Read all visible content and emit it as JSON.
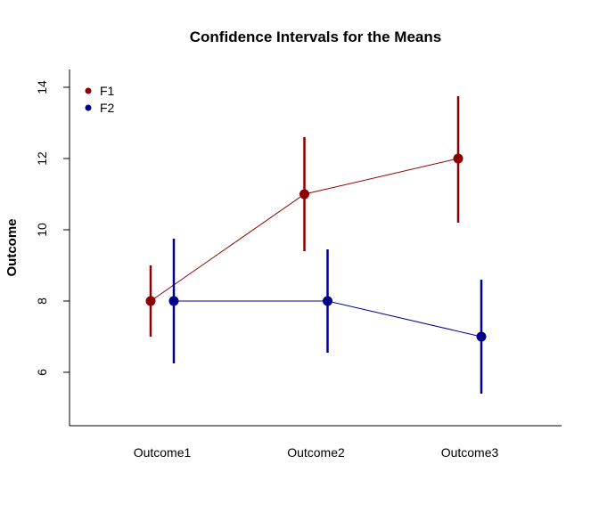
{
  "chart_data": {
    "type": "line",
    "title": "Confidence Intervals for the Means",
    "xlabel": "",
    "ylabel": "Outcome",
    "categories": [
      "Outcome1",
      "Outcome2",
      "Outcome3"
    ],
    "y_ticks": [
      "6",
      "8",
      "10",
      "12",
      "14"
    ],
    "ylim": [
      4.5,
      14.5
    ],
    "grid": false,
    "legend_position": "top-left",
    "series": [
      {
        "name": "F1",
        "color": "#8b0000",
        "values": [
          8,
          11,
          12
        ],
        "lower": [
          7.0,
          9.4,
          10.2
        ],
        "upper": [
          9.0,
          12.6,
          13.75
        ]
      },
      {
        "name": "F2",
        "color": "#00008b",
        "values": [
          8,
          8,
          7
        ],
        "lower": [
          6.25,
          6.55,
          5.4
        ],
        "upper": [
          9.75,
          9.45,
          8.6
        ]
      }
    ]
  }
}
